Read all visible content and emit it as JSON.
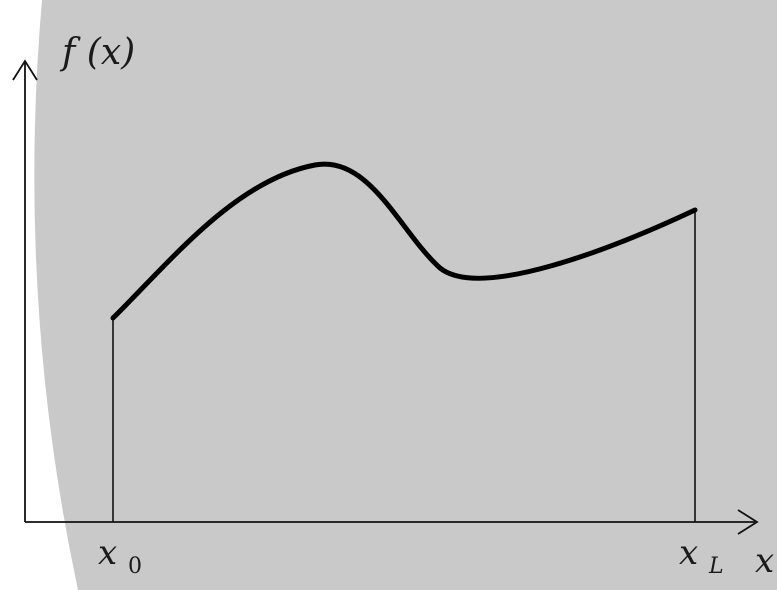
{
  "diagram": {
    "y_axis_label": "f (x)",
    "x_axis_label": "x",
    "left_bound": {
      "symbol": "x",
      "subscript": "0"
    },
    "right_bound": {
      "symbol": "x",
      "subscript": "L"
    },
    "colors": {
      "background_panel": "#c9c9c9",
      "page": "#ffffff",
      "ink": "#000000"
    }
  }
}
